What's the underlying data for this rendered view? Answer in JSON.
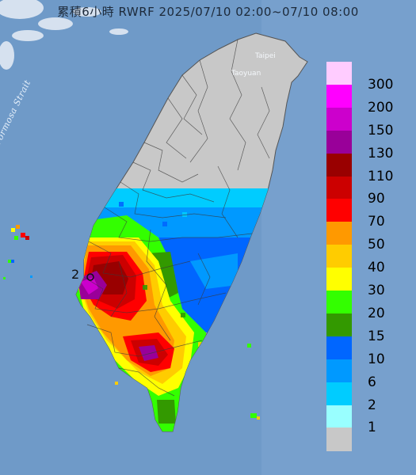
{
  "title": "累積6小時 RWRF 2025/07/10 02:00~07/10 08:00",
  "strait_label": "Formosa Strait",
  "places": {
    "taipei": "Taipei",
    "taoyuan": "Taoyuan"
  },
  "station_label": "2",
  "legend": {
    "colors": [
      "#ffccff",
      "#ff00ff",
      "#cc00cc",
      "#990099",
      "#990000",
      "#cc0000",
      "#ff0000",
      "#ff9900",
      "#ffcc00",
      "#ffff00",
      "#33ff00",
      "#339900",
      "#0066ff",
      "#0099ff",
      "#00ccff",
      "#99ffff",
      "#c8c8c8"
    ],
    "labels": [
      "300",
      "200",
      "150",
      "130",
      "110",
      "90",
      "70",
      "50",
      "40",
      "30",
      "20",
      "15",
      "10",
      "6",
      "2",
      "1"
    ]
  }
}
